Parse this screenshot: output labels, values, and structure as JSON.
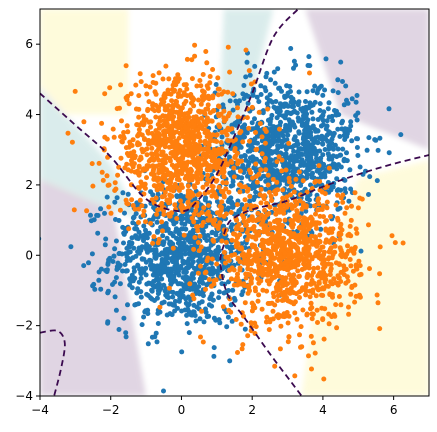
{
  "chart_data": {
    "type": "scatter",
    "title": "",
    "xlabel": "",
    "ylabel": "",
    "xlim": [
      -4,
      7
    ],
    "ylim": [
      -4,
      7
    ],
    "grid": false,
    "legend": "none",
    "x_ticks": [
      {
        "value": -4,
        "label": "−4"
      },
      {
        "value": -2,
        "label": "−2"
      },
      {
        "value": 0,
        "label": "0"
      },
      {
        "value": 2,
        "label": "2"
      },
      {
        "value": 4,
        "label": "4"
      },
      {
        "value": 6,
        "label": "6"
      }
    ],
    "y_ticks": [
      {
        "value": -4,
        "label": "−4"
      },
      {
        "value": -2,
        "label": "−2"
      },
      {
        "value": 0,
        "label": "0"
      },
      {
        "value": 2,
        "label": "2"
      },
      {
        "value": 4,
        "label": "4"
      },
      {
        "value": 6,
        "label": "6"
      }
    ],
    "series": [
      {
        "color": "#1f77b4",
        "clusters": [
          {
            "center": [
              0,
              0
            ],
            "std": 1.0,
            "count": 1000
          },
          {
            "center": [
              3,
              3
            ],
            "std": 1.0,
            "count": 1000
          }
        ]
      },
      {
        "color": "#ff7f0e",
        "clusters": [
          {
            "center": [
              0,
              3
            ],
            "std": 1.0,
            "count": 1000
          },
          {
            "center": [
              3,
              0
            ],
            "std": 1.0,
            "count": 1000
          }
        ]
      }
    ],
    "decision_boundary": {
      "color": "#3b0a4f",
      "style": "dashed",
      "curves": [
        [
          [
            -4,
            4.6
          ],
          [
            -3,
            3.7
          ],
          [
            -2,
            2.8
          ],
          [
            -1,
            1.6
          ],
          [
            0,
            1.25
          ],
          [
            0.5,
            1.6
          ],
          [
            1,
            2.3
          ],
          [
            1.5,
            3.4
          ],
          [
            2,
            4.6
          ],
          [
            2.6,
            6.2
          ],
          [
            3.3,
            7
          ]
        ],
        [
          [
            1.2,
            0.6
          ],
          [
            1.4,
            1.0
          ],
          [
            2,
            1.3
          ],
          [
            3,
            1.55
          ],
          [
            4,
            1.95
          ],
          [
            5,
            2.3
          ],
          [
            6,
            2.6
          ],
          [
            7,
            2.85
          ]
        ],
        [
          [
            1.2,
            0.3
          ],
          [
            1.1,
            -0.2
          ],
          [
            1.3,
            -1.1
          ],
          [
            1.8,
            -1.8
          ],
          [
            2.5,
            -2.8
          ],
          [
            3.1,
            -3.6
          ],
          [
            3.4,
            -4
          ]
        ],
        [
          [
            -4,
            -2.2
          ],
          [
            -3.5,
            -2.15
          ],
          [
            -3.3,
            -2.5
          ],
          [
            -3.4,
            -3.2
          ],
          [
            -3.6,
            -4
          ]
        ]
      ]
    },
    "background": {
      "colormap": [
        "#440154",
        "#21918c",
        "#fde725"
      ],
      "region_classes": [
        "blue",
        "orange"
      ]
    }
  }
}
